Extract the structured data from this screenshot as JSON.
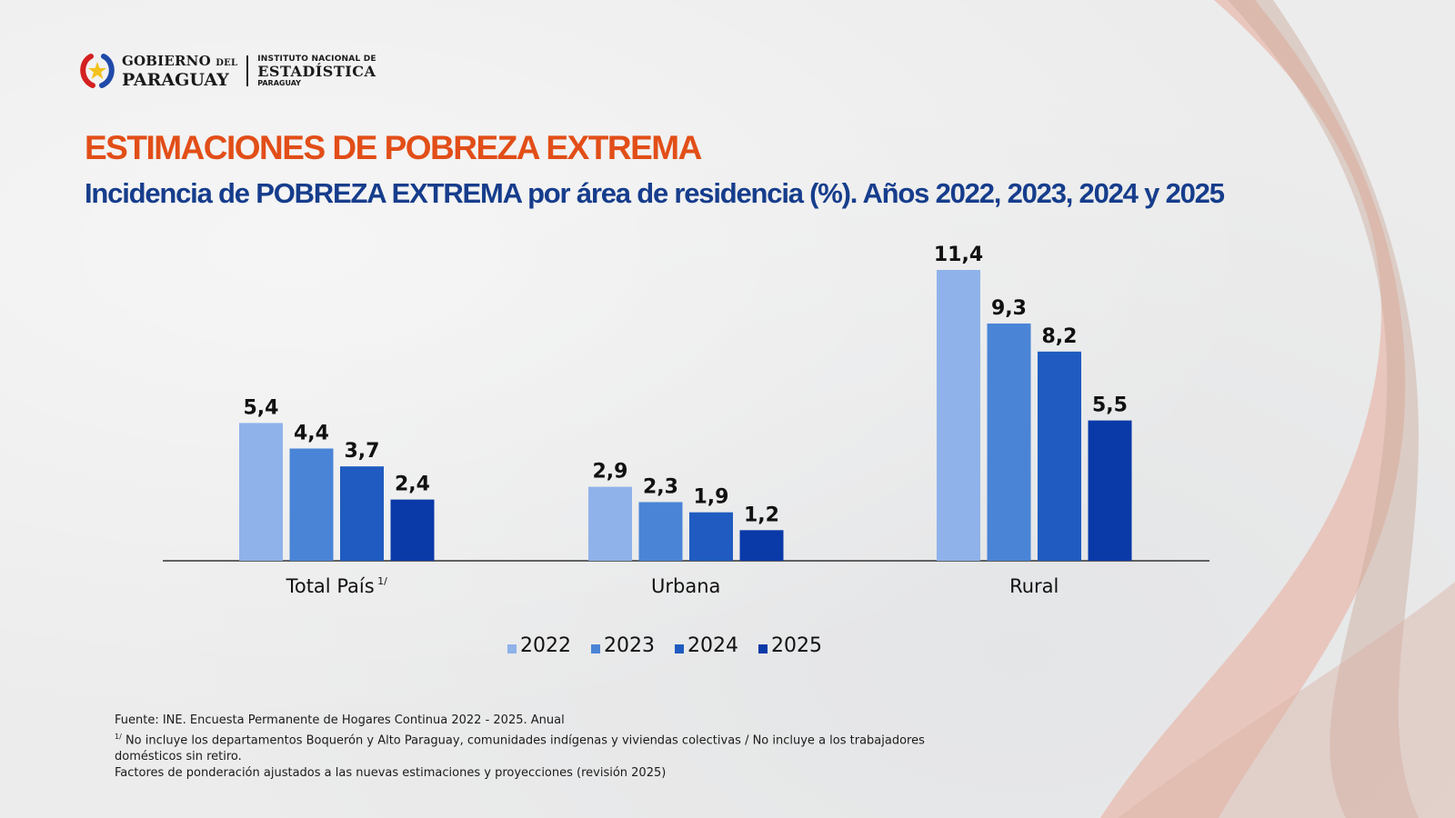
{
  "header": {
    "gov_line1": "GOBIERNO",
    "gov_del": "DEL",
    "gov_line2": "PARAGUAY",
    "ine_line1": "INSTITUTO NACIONAL DE",
    "ine_line2": "ESTADÍSTICA",
    "ine_line3": "PARAGUAY"
  },
  "title": "ESTIMACIONES DE POBREZA EXTREMA",
  "subtitle": "Incidencia de POBREZA EXTREMA por área de residencia (%). Años 2022, 2023, 2024 y 2025",
  "colors": {
    "title": "#e24e18",
    "subtitle": "#163d8c",
    "series": [
      "#8fb2ea",
      "#4a84d6",
      "#1f5bc0",
      "#0a3aa8"
    ]
  },
  "chart_data": {
    "type": "bar",
    "title": "Incidencia de POBREZA EXTREMA por área de residencia (%). Años 2022, 2023, 2024 y 2025",
    "categories": [
      "Total País",
      "Urbana",
      "Rural"
    ],
    "category_superscripts": [
      "1/",
      "",
      ""
    ],
    "series": [
      {
        "name": "2022",
        "values": [
          5.4,
          2.9,
          11.4
        ],
        "labels": [
          "5,4",
          "2,9",
          "11,4"
        ]
      },
      {
        "name": "2023",
        "values": [
          4.4,
          2.3,
          9.3
        ],
        "labels": [
          "4,4",
          "2,3",
          "9,3"
        ]
      },
      {
        "name": "2024",
        "values": [
          3.7,
          1.9,
          8.2
        ],
        "labels": [
          "3,7",
          "1,9",
          "8,2"
        ]
      },
      {
        "name": "2025",
        "values": [
          2.4,
          1.2,
          5.5
        ],
        "labels": [
          "2,4",
          "1,2",
          "5,5"
        ]
      }
    ],
    "xlabel": "",
    "ylabel": "",
    "ylim": [
      0,
      11.4
    ],
    "grid": false,
    "legend": "bottom"
  },
  "notes": {
    "source": "Fuente: INE. Encuesta Permanente de Hogares Continua 2022 - 2025. Anual",
    "footnote_mark": "1/",
    "footnote": "No incluye los departamentos Boquerón y Alto Paraguay, comunidades indígenas y viviendas colectivas / No incluye a los trabajadores domésticos sin retiro.",
    "weights": "Factores de ponderación ajustados a las nuevas estimaciones y proyecciones (revisión 2025)"
  }
}
